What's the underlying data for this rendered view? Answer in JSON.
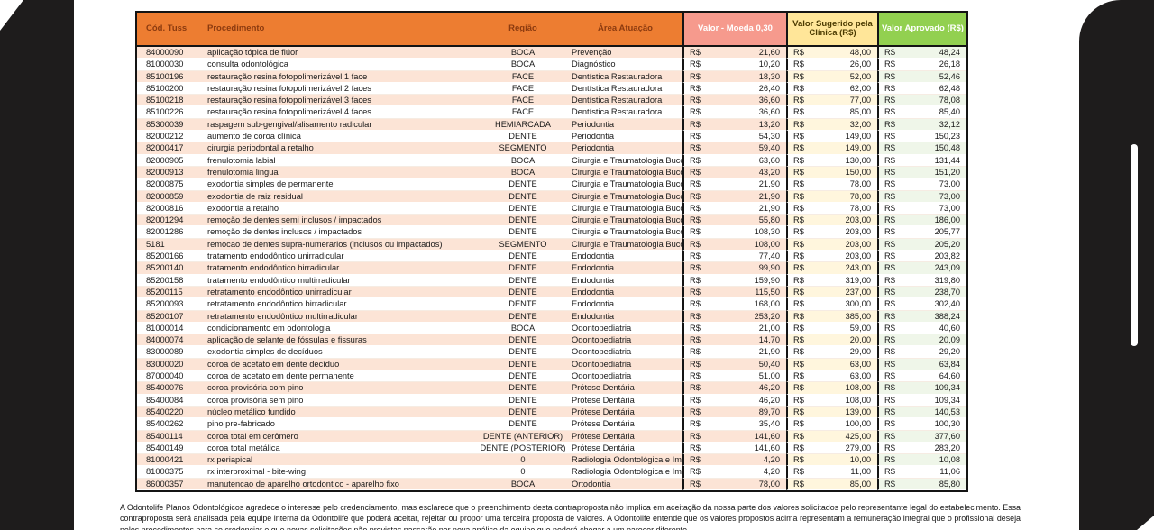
{
  "viewer": {
    "left_bezel": "black side panel",
    "right_bezel": "black side panel",
    "scrollbar": "vertical scrollbar thumb"
  },
  "colors": {
    "header_orange": "#ED7D31",
    "header_salmon": "#F69A8D",
    "header_yellow": "#FFE699",
    "header_green": "#92D050",
    "stripe_peach": "#FCE4D6",
    "stripe_yellow": "#FFF6DD",
    "stripe_green": "#EFF6E9"
  },
  "table": {
    "currency": "R$",
    "headers": {
      "cod": "Cód. Tuss",
      "procedimento": "Procedimento",
      "regiao": "Região",
      "area": "Área Atuação",
      "valor_moeda": "Valor - Moeda 0,30",
      "valor_sugerido": "Valor Sugerido pela Clínica (R$)",
      "valor_aprovado": "Valor Aprovado (R$)"
    },
    "columns_order": [
      "cod",
      "procedimento",
      "regiao",
      "area",
      "valor_moeda",
      "valor_sugerido",
      "valor_aprovado"
    ],
    "rows": [
      [
        "84000090",
        "aplicação tópica de flúor",
        "BOCA",
        "Prevenção",
        "21,60",
        "48,00",
        "48,24"
      ],
      [
        "81000030",
        "consulta odontológica",
        "BOCA",
        "Diagnóstico",
        "10,20",
        "26,00",
        "26,18"
      ],
      [
        "85100196",
        "restauração resina fotopolimerizável 1 face",
        "FACE",
        "Dentística Restauradora",
        "18,30",
        "52,00",
        "52,46"
      ],
      [
        "85100200",
        "restauração resina fotopolimerizável 2 faces",
        "FACE",
        "Dentística Restauradora",
        "26,40",
        "62,00",
        "62,48"
      ],
      [
        "85100218",
        "restauração resina fotopolimerizável 3 faces",
        "FACE",
        "Dentística Restauradora",
        "36,60",
        "77,00",
        "78,08"
      ],
      [
        "85100226",
        "restauração resina fotopolimerizável 4 faces",
        "FACE",
        "Dentística Restauradora",
        "36,60",
        "85,00",
        "85,40"
      ],
      [
        "85300039",
        "raspagem sub-gengival/alisamento radicular",
        "HEMIARCADA",
        "Periodontia",
        "13,20",
        "32,00",
        "32,12"
      ],
      [
        "82000212",
        "aumento de coroa clínica",
        "DENTE",
        "Periodontia",
        "54,30",
        "149,00",
        "150,23"
      ],
      [
        "82000417",
        "cirurgia periodontal a retalho",
        "SEGMENTO",
        "Periodontia",
        "59,40",
        "149,00",
        "150,48"
      ],
      [
        "82000905",
        "frenulotomia labial",
        "BOCA",
        "Cirurgia e Traumatologia Buco",
        "63,60",
        "130,00",
        "131,44"
      ],
      [
        "82000913",
        "frenulotomia lingual",
        "BOCA",
        "Cirurgia e Traumatologia Buco",
        "43,20",
        "150,00",
        "151,20"
      ],
      [
        "82000875",
        "exodontia simples de permanente",
        "DENTE",
        "Cirurgia e Traumatologia Buco",
        "21,90",
        "78,00",
        "73,00"
      ],
      [
        "82000859",
        "exodontia de raiz residual",
        "DENTE",
        "Cirurgia e Traumatologia Buco",
        "21,90",
        "78,00",
        "73,00"
      ],
      [
        "82000816",
        "exodontia a retalho",
        "DENTE",
        "Cirurgia e Traumatologia Buco",
        "21,90",
        "78,00",
        "73,00"
      ],
      [
        "82001294",
        "remoção de dentes semi inclusos / impactados",
        "DENTE",
        "Cirurgia e Traumatologia Buco",
        "55,80",
        "203,00",
        "186,00"
      ],
      [
        "82001286",
        "remoção de dentes inclusos / impactados",
        "DENTE",
        "Cirurgia e Traumatologia Buco",
        "108,30",
        "203,00",
        "205,77"
      ],
      [
        "5181",
        "remocao de dentes supra-numerarios (inclusos ou impactados)",
        "SEGMENTO",
        "Cirurgia e Traumatologia Buco",
        "108,00",
        "203,00",
        "205,20"
      ],
      [
        "85200166",
        "tratamento endodôntico unirradicular",
        "DENTE",
        "Endodontia",
        "77,40",
        "203,00",
        "203,82"
      ],
      [
        "85200140",
        "tratamento endodôntico birradicular",
        "DENTE",
        "Endodontia",
        "99,90",
        "243,00",
        "243,09"
      ],
      [
        "85200158",
        "tratamento endodôntico multirradicular",
        "DENTE",
        "Endodontia",
        "159,90",
        "319,00",
        "319,80"
      ],
      [
        "85200115",
        "retratamento endodôntico unirradicular",
        "DENTE",
        "Endodontia",
        "115,50",
        "237,00",
        "238,70"
      ],
      [
        "85200093",
        "retratamento endodôntico birradicular",
        "DENTE",
        "Endodontia",
        "168,00",
        "300,00",
        "302,40"
      ],
      [
        "85200107",
        "retratamento endodôntico multirradicular",
        "DENTE",
        "Endodontia",
        "253,20",
        "385,00",
        "388,24"
      ],
      [
        "81000014",
        "condicionamento em odontologia",
        "BOCA",
        "Odontopediatria",
        "21,00",
        "59,00",
        "40,60"
      ],
      [
        "84000074",
        "aplicação de selante de fóssulas e fissuras",
        "DENTE",
        "Odontopediatria",
        "14,70",
        "20,00",
        "20,09"
      ],
      [
        "83000089",
        "exodontia simples de decíduos",
        "DENTE",
        "Odontopediatria",
        "21,90",
        "29,00",
        "29,20"
      ],
      [
        "83000020",
        "coroa de acetato em dente decíduo",
        "DENTE",
        "Odontopediatria",
        "50,40",
        "63,00",
        "63,84"
      ],
      [
        "87000040",
        "coroa de acetato em dente permanente",
        "DENTE",
        "Odontopediatria",
        "51,00",
        "63,00",
        "64,60"
      ],
      [
        "85400076",
        "coroa provisória com pino",
        "DENTE",
        "Prótese Dentária",
        "46,20",
        "108,00",
        "109,34"
      ],
      [
        "85400084",
        "coroa provisória sem pino",
        "DENTE",
        "Prótese Dentária",
        "46,20",
        "108,00",
        "109,34"
      ],
      [
        "85400220",
        "núcleo metálico fundido",
        "DENTE",
        "Prótese Dentária",
        "89,70",
        "139,00",
        "140,53"
      ],
      [
        "85400262",
        "pino pre-fabricado",
        "DENTE",
        "Prótese Dentária",
        "35,40",
        "100,00",
        "100,30"
      ],
      [
        "85400114",
        "coroa total em cerômero",
        "DENTE (ANTERIOR)",
        "Prótese Dentária",
        "141,60",
        "425,00",
        "377,60"
      ],
      [
        "85400149",
        "coroa total metálica",
        "DENTE (POSTERIOR)",
        "Prótese Dentária",
        "141,60",
        "279,00",
        "283,20"
      ],
      [
        "81000421",
        "rx periapical",
        "0",
        "Radiologia Odontológica e Ima",
        "4,20",
        "10,00",
        "10,08"
      ],
      [
        "81000375",
        "rx interproximal - bite-wing",
        "0",
        "Radiologia Odontológica e Ima",
        "4,20",
        "11,00",
        "11,06"
      ],
      [
        "86000357",
        "manutencao de aparelho ortodontico - aparelho fixo",
        "BOCA",
        "Ortodontia",
        "78,00",
        "85,00",
        "85,80"
      ]
    ]
  },
  "footer_text": "A Odontolife Planos Odontológicos agradece o interesse pelo credenciamento, mas esclarece que o preenchimento desta contraproposta não implica em aceitação da nossa parte dos valores solicitados pelo representante legal do estabelecimento. Essa contraproposta será analisada pela equipe interna da Odontolife que poderá aceitar, rejeitar ou propor uma terceira proposta de valores. A Odontolife entende que os valores propostos acima representam a remuneração integral que o profissional deseja pelos procedimentos para se credenciar e que novas solicitações não previstas passarão por nova análise da equipe que poderá chegar a um parecer diferente"
}
